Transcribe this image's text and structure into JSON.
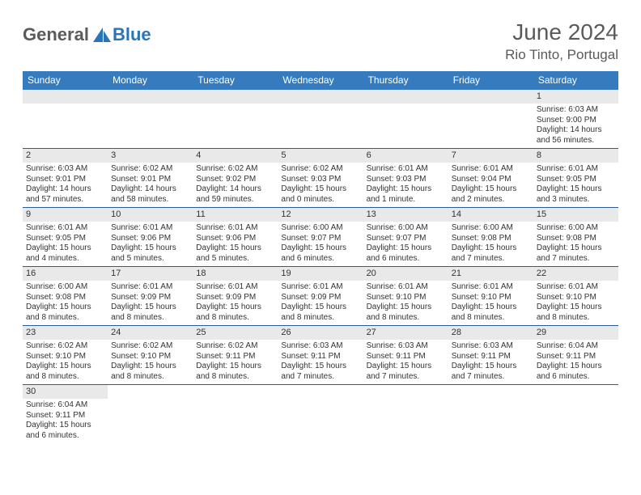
{
  "brand": {
    "general": "General",
    "blue": "Blue",
    "generalColor": "#5a5a5a",
    "blueColor": "#2a74b8"
  },
  "header": {
    "monthTitle": "June 2024",
    "location": "Rio Tinto, Portugal"
  },
  "colors": {
    "headerBar": "#357bbd",
    "headerText": "#ffffff",
    "rowBorder": "#2a5d94",
    "dayNumBg": "#e9e9e9",
    "textColor": "#333333",
    "pageBg": "#ffffff"
  },
  "typography": {
    "titleFontSize": 28,
    "locationFontSize": 17,
    "dayHeaderFontSize": 12,
    "dayNumFontSize": 11,
    "bodyFontSize": 10
  },
  "layout": {
    "columns": 7,
    "rows": 6,
    "pageWidth": 792,
    "pageHeight": 612
  },
  "dayHeaders": [
    "Sunday",
    "Monday",
    "Tuesday",
    "Wednesday",
    "Thursday",
    "Friday",
    "Saturday"
  ],
  "weeks": [
    [
      null,
      null,
      null,
      null,
      null,
      null,
      {
        "num": "1",
        "sunrise": "Sunrise: 6:03 AM",
        "sunset": "Sunset: 9:00 PM",
        "daylight1": "Daylight: 14 hours",
        "daylight2": "and 56 minutes."
      }
    ],
    [
      {
        "num": "2",
        "sunrise": "Sunrise: 6:03 AM",
        "sunset": "Sunset: 9:01 PM",
        "daylight1": "Daylight: 14 hours",
        "daylight2": "and 57 minutes."
      },
      {
        "num": "3",
        "sunrise": "Sunrise: 6:02 AM",
        "sunset": "Sunset: 9:01 PM",
        "daylight1": "Daylight: 14 hours",
        "daylight2": "and 58 minutes."
      },
      {
        "num": "4",
        "sunrise": "Sunrise: 6:02 AM",
        "sunset": "Sunset: 9:02 PM",
        "daylight1": "Daylight: 14 hours",
        "daylight2": "and 59 minutes."
      },
      {
        "num": "5",
        "sunrise": "Sunrise: 6:02 AM",
        "sunset": "Sunset: 9:03 PM",
        "daylight1": "Daylight: 15 hours",
        "daylight2": "and 0 minutes."
      },
      {
        "num": "6",
        "sunrise": "Sunrise: 6:01 AM",
        "sunset": "Sunset: 9:03 PM",
        "daylight1": "Daylight: 15 hours",
        "daylight2": "and 1 minute."
      },
      {
        "num": "7",
        "sunrise": "Sunrise: 6:01 AM",
        "sunset": "Sunset: 9:04 PM",
        "daylight1": "Daylight: 15 hours",
        "daylight2": "and 2 minutes."
      },
      {
        "num": "8",
        "sunrise": "Sunrise: 6:01 AM",
        "sunset": "Sunset: 9:05 PM",
        "daylight1": "Daylight: 15 hours",
        "daylight2": "and 3 minutes."
      }
    ],
    [
      {
        "num": "9",
        "sunrise": "Sunrise: 6:01 AM",
        "sunset": "Sunset: 9:05 PM",
        "daylight1": "Daylight: 15 hours",
        "daylight2": "and 4 minutes."
      },
      {
        "num": "10",
        "sunrise": "Sunrise: 6:01 AM",
        "sunset": "Sunset: 9:06 PM",
        "daylight1": "Daylight: 15 hours",
        "daylight2": "and 5 minutes."
      },
      {
        "num": "11",
        "sunrise": "Sunrise: 6:01 AM",
        "sunset": "Sunset: 9:06 PM",
        "daylight1": "Daylight: 15 hours",
        "daylight2": "and 5 minutes."
      },
      {
        "num": "12",
        "sunrise": "Sunrise: 6:00 AM",
        "sunset": "Sunset: 9:07 PM",
        "daylight1": "Daylight: 15 hours",
        "daylight2": "and 6 minutes."
      },
      {
        "num": "13",
        "sunrise": "Sunrise: 6:00 AM",
        "sunset": "Sunset: 9:07 PM",
        "daylight1": "Daylight: 15 hours",
        "daylight2": "and 6 minutes."
      },
      {
        "num": "14",
        "sunrise": "Sunrise: 6:00 AM",
        "sunset": "Sunset: 9:08 PM",
        "daylight1": "Daylight: 15 hours",
        "daylight2": "and 7 minutes."
      },
      {
        "num": "15",
        "sunrise": "Sunrise: 6:00 AM",
        "sunset": "Sunset: 9:08 PM",
        "daylight1": "Daylight: 15 hours",
        "daylight2": "and 7 minutes."
      }
    ],
    [
      {
        "num": "16",
        "sunrise": "Sunrise: 6:00 AM",
        "sunset": "Sunset: 9:08 PM",
        "daylight1": "Daylight: 15 hours",
        "daylight2": "and 8 minutes."
      },
      {
        "num": "17",
        "sunrise": "Sunrise: 6:01 AM",
        "sunset": "Sunset: 9:09 PM",
        "daylight1": "Daylight: 15 hours",
        "daylight2": "and 8 minutes."
      },
      {
        "num": "18",
        "sunrise": "Sunrise: 6:01 AM",
        "sunset": "Sunset: 9:09 PM",
        "daylight1": "Daylight: 15 hours",
        "daylight2": "and 8 minutes."
      },
      {
        "num": "19",
        "sunrise": "Sunrise: 6:01 AM",
        "sunset": "Sunset: 9:09 PM",
        "daylight1": "Daylight: 15 hours",
        "daylight2": "and 8 minutes."
      },
      {
        "num": "20",
        "sunrise": "Sunrise: 6:01 AM",
        "sunset": "Sunset: 9:10 PM",
        "daylight1": "Daylight: 15 hours",
        "daylight2": "and 8 minutes."
      },
      {
        "num": "21",
        "sunrise": "Sunrise: 6:01 AM",
        "sunset": "Sunset: 9:10 PM",
        "daylight1": "Daylight: 15 hours",
        "daylight2": "and 8 minutes."
      },
      {
        "num": "22",
        "sunrise": "Sunrise: 6:01 AM",
        "sunset": "Sunset: 9:10 PM",
        "daylight1": "Daylight: 15 hours",
        "daylight2": "and 8 minutes."
      }
    ],
    [
      {
        "num": "23",
        "sunrise": "Sunrise: 6:02 AM",
        "sunset": "Sunset: 9:10 PM",
        "daylight1": "Daylight: 15 hours",
        "daylight2": "and 8 minutes."
      },
      {
        "num": "24",
        "sunrise": "Sunrise: 6:02 AM",
        "sunset": "Sunset: 9:10 PM",
        "daylight1": "Daylight: 15 hours",
        "daylight2": "and 8 minutes."
      },
      {
        "num": "25",
        "sunrise": "Sunrise: 6:02 AM",
        "sunset": "Sunset: 9:11 PM",
        "daylight1": "Daylight: 15 hours",
        "daylight2": "and 8 minutes."
      },
      {
        "num": "26",
        "sunrise": "Sunrise: 6:03 AM",
        "sunset": "Sunset: 9:11 PM",
        "daylight1": "Daylight: 15 hours",
        "daylight2": "and 7 minutes."
      },
      {
        "num": "27",
        "sunrise": "Sunrise: 6:03 AM",
        "sunset": "Sunset: 9:11 PM",
        "daylight1": "Daylight: 15 hours",
        "daylight2": "and 7 minutes."
      },
      {
        "num": "28",
        "sunrise": "Sunrise: 6:03 AM",
        "sunset": "Sunset: 9:11 PM",
        "daylight1": "Daylight: 15 hours",
        "daylight2": "and 7 minutes."
      },
      {
        "num": "29",
        "sunrise": "Sunrise: 6:04 AM",
        "sunset": "Sunset: 9:11 PM",
        "daylight1": "Daylight: 15 hours",
        "daylight2": "and 6 minutes."
      }
    ],
    [
      {
        "num": "30",
        "sunrise": "Sunrise: 6:04 AM",
        "sunset": "Sunset: 9:11 PM",
        "daylight1": "Daylight: 15 hours",
        "daylight2": "and 6 minutes."
      },
      null,
      null,
      null,
      null,
      null,
      null
    ]
  ]
}
